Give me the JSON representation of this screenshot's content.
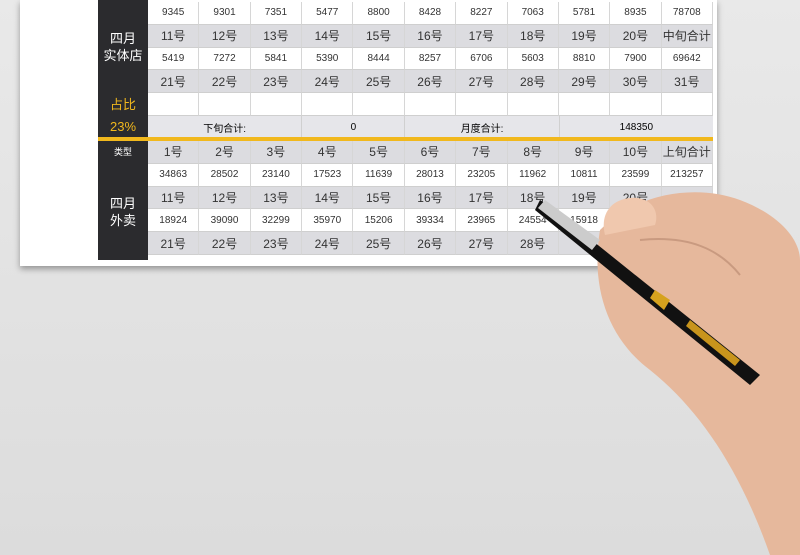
{
  "store": {
    "label": "四月\n实体店",
    "ratio_label": "占比",
    "ratio": "23%",
    "rows": [
      [
        "9345",
        "9301",
        "7351",
        "5477",
        "8800",
        "8428",
        "8227",
        "7063",
        "5781",
        "8935",
        "78708"
      ],
      [
        "11号",
        "12号",
        "13号",
        "14号",
        "15号",
        "16号",
        "17号",
        "18号",
        "19号",
        "20号",
        "中旬合计"
      ],
      [
        "5419",
        "7272",
        "5841",
        "5390",
        "8444",
        "8257",
        "6706",
        "5603",
        "8810",
        "7900",
        "69642"
      ],
      [
        "21号",
        "22号",
        "23号",
        "24号",
        "25号",
        "26号",
        "27号",
        "28号",
        "29号",
        "30号",
        "31号"
      ],
      [
        "",
        "",
        "",
        "",
        "",
        "",
        "",
        "",
        "",
        "",
        ""
      ]
    ],
    "summary": {
      "late_label": "下旬合计:",
      "late_value": "0",
      "month_label": "月度合计:",
      "month_value": "148350"
    }
  },
  "takeout": {
    "type_label": "类型",
    "label": "四月\n外卖",
    "rows": [
      [
        "1号",
        "2号",
        "3号",
        "4号",
        "5号",
        "6号",
        "7号",
        "8号",
        "9号",
        "10号",
        "上旬合计"
      ],
      [
        "34863",
        "28502",
        "23140",
        "17523",
        "11639",
        "28013",
        "23205",
        "11962",
        "10811",
        "23599",
        "213257"
      ],
      [
        "11号",
        "12号",
        "13号",
        "14号",
        "15号",
        "16号",
        "17号",
        "18号",
        "19号",
        "20号",
        ""
      ],
      [
        "18924",
        "39090",
        "32299",
        "35970",
        "15206",
        "39334",
        "23965",
        "24554",
        "15918",
        "",
        ""
      ],
      [
        "21号",
        "22号",
        "23号",
        "24号",
        "25号",
        "26号",
        "27号",
        "28号",
        "",
        "",
        ""
      ]
    ]
  },
  "colors": {
    "accent": "#f1b81d",
    "side": "#2b2b2e",
    "header_row": "#dcdce0"
  }
}
